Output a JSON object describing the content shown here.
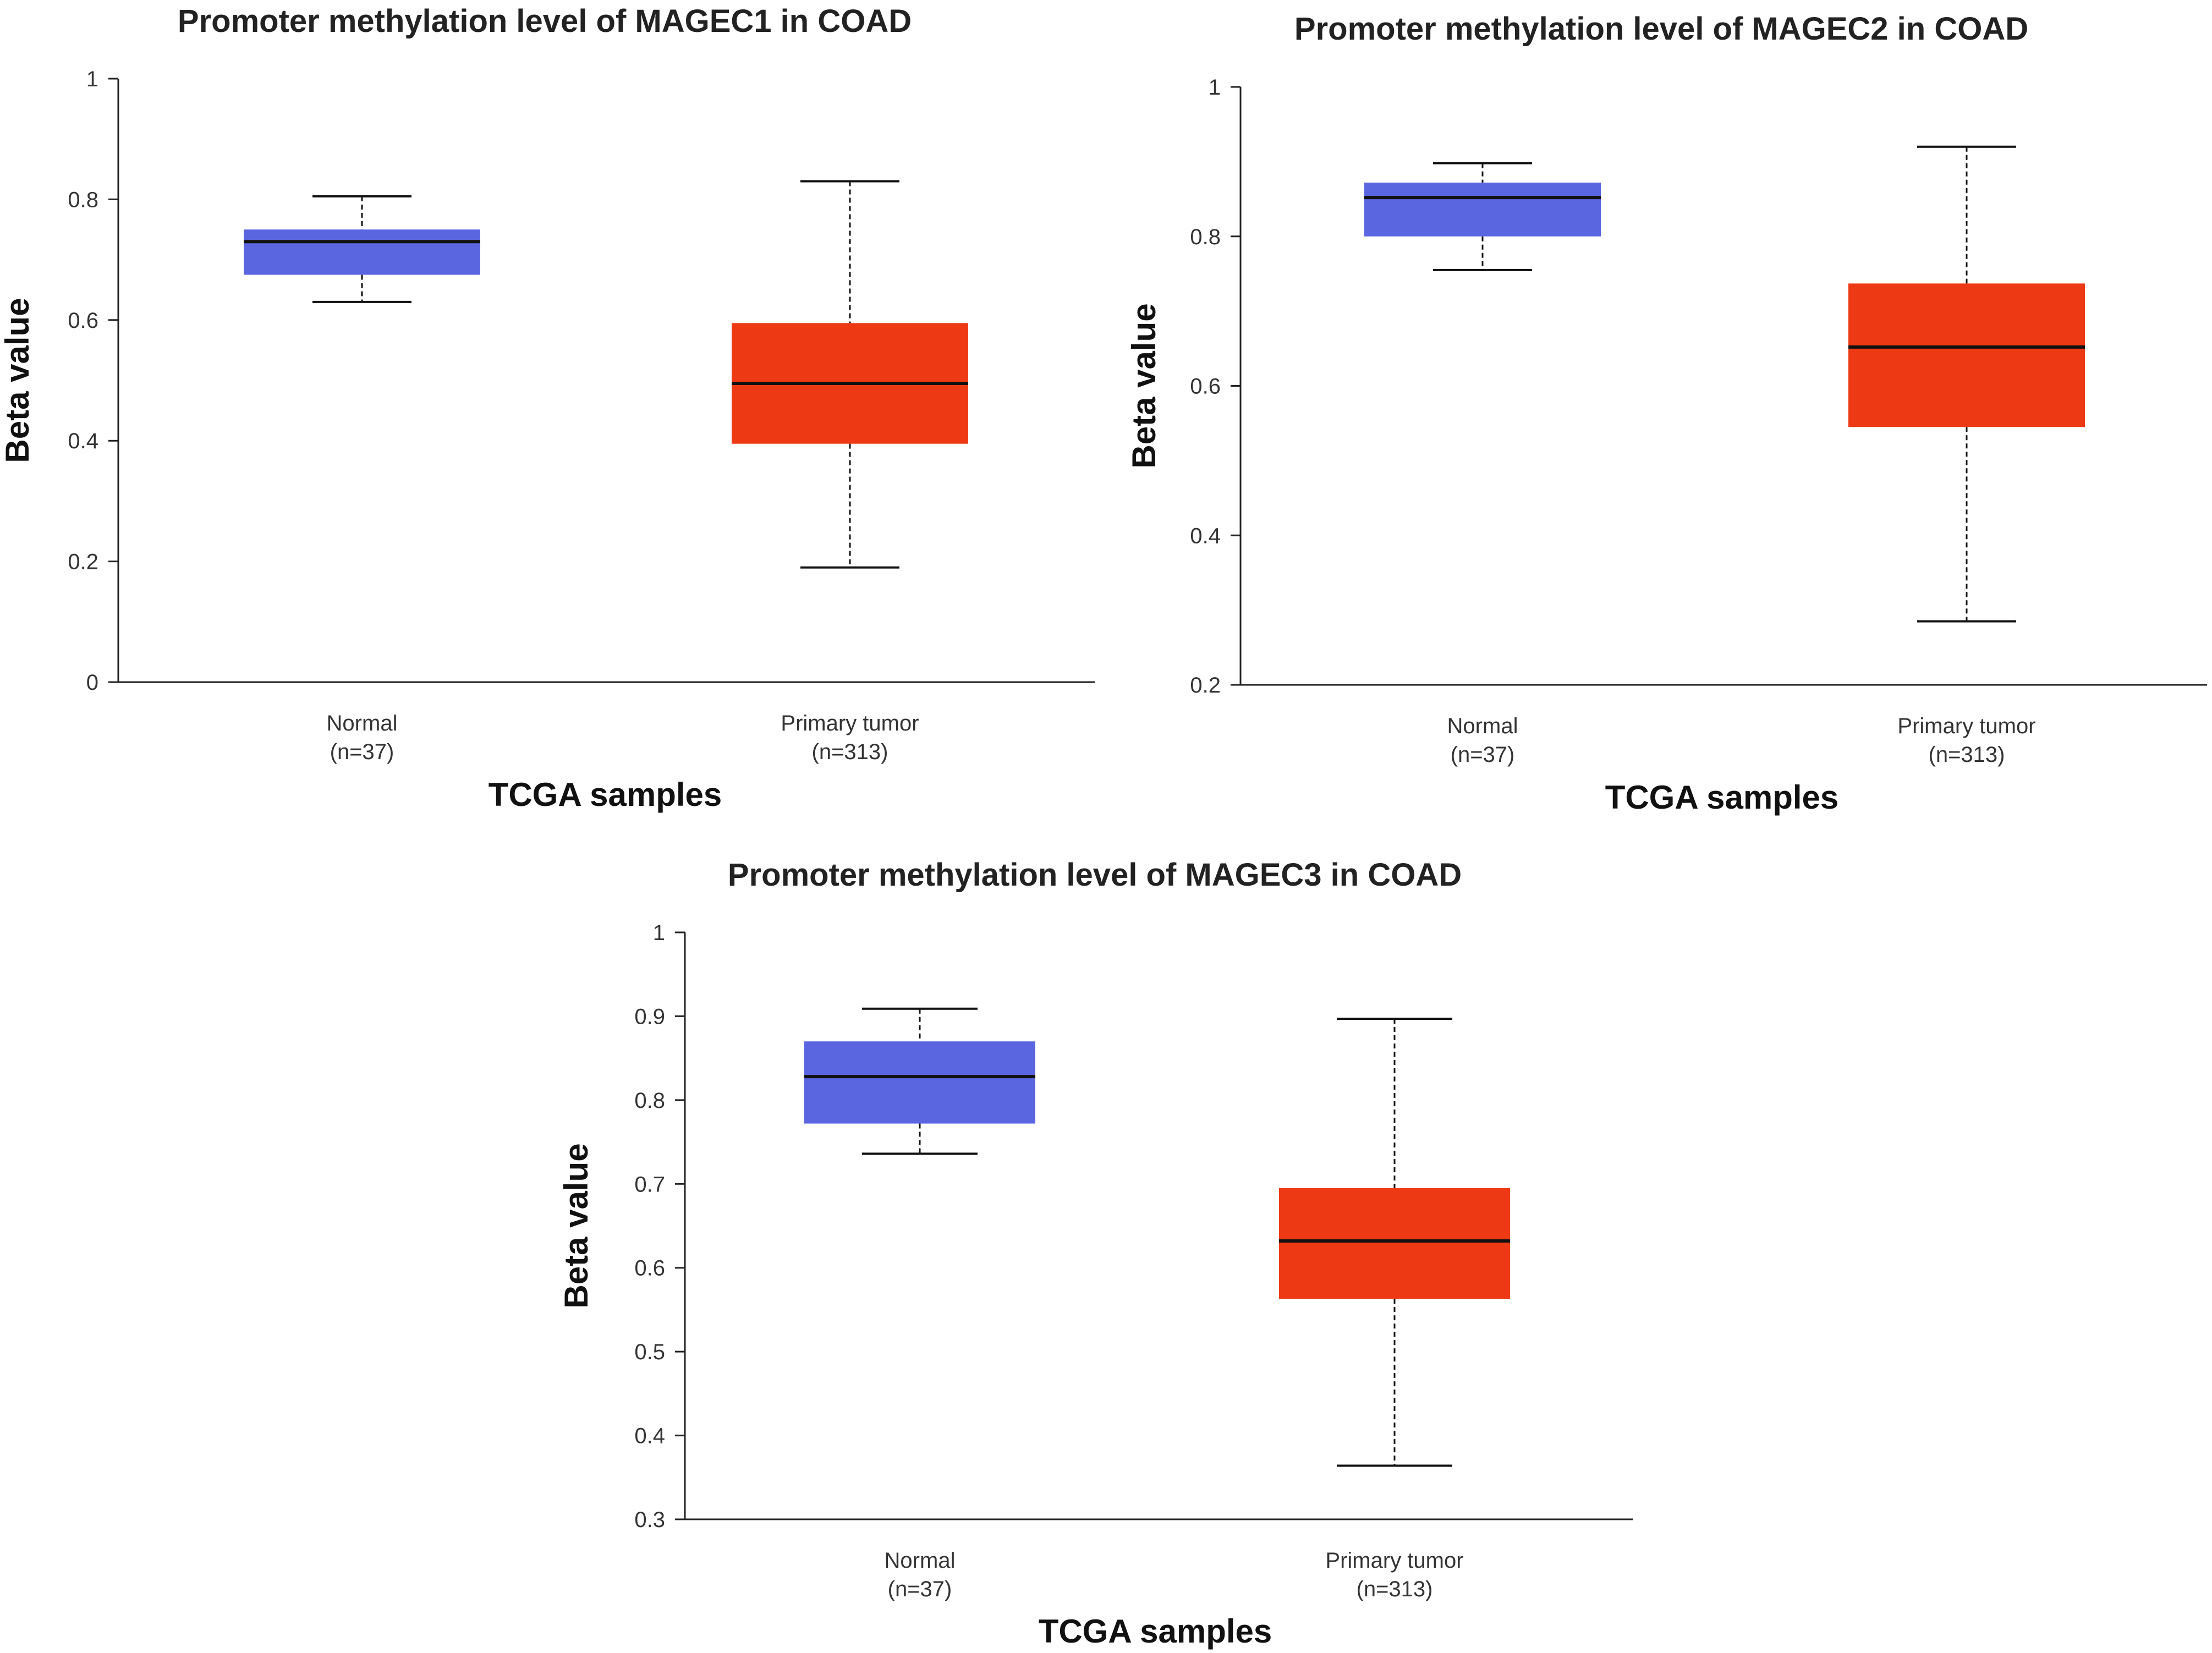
{
  "chart_data": [
    {
      "type": "box",
      "title": "Promoter methylation level of MAGEC1 in COAD",
      "xlabel": "TCGA samples",
      "ylabel": "Beta value",
      "ylim": [
        0,
        1
      ],
      "yticks": [
        "0",
        "0.2",
        "0.4",
        "0.6",
        "0.8",
        "1"
      ],
      "grid": false,
      "categories": [
        {
          "label": "Normal",
          "n": "(n=37)",
          "color": "#5a66e0",
          "min": 0.63,
          "q1": 0.675,
          "median": 0.73,
          "q3": 0.75,
          "max": 0.805
        },
        {
          "label": "Primary tumor",
          "n": "(n=313)",
          "color": "#ee3a14",
          "min": 0.19,
          "q1": 0.395,
          "median": 0.495,
          "q3": 0.595,
          "max": 0.83
        }
      ]
    },
    {
      "type": "box",
      "title": "Promoter methylation level of MAGEC2 in COAD",
      "xlabel": "TCGA samples",
      "ylabel": "Beta value",
      "ylim": [
        0.2,
        1
      ],
      "yticks": [
        "0.2",
        "0.4",
        "0.6",
        "0.8",
        "1"
      ],
      "grid": false,
      "categories": [
        {
          "label": "Normal",
          "n": "(n=37)",
          "color": "#5a66e0",
          "min": 0.755,
          "q1": 0.8,
          "median": 0.852,
          "q3": 0.872,
          "max": 0.898
        },
        {
          "label": "Primary tumor",
          "n": "(n=313)",
          "color": "#ee3a14",
          "min": 0.285,
          "q1": 0.545,
          "median": 0.652,
          "q3": 0.737,
          "max": 0.92
        }
      ]
    },
    {
      "type": "box",
      "title": "Promoter methylation level of MAGEC3 in COAD",
      "xlabel": "TCGA samples",
      "ylabel": "Beta value",
      "ylim": [
        0.3,
        1
      ],
      "yticks": [
        "0.3",
        "0.4",
        "0.5",
        "0.6",
        "0.7",
        "0.8",
        "0.9",
        "1"
      ],
      "grid": false,
      "categories": [
        {
          "label": "Normal",
          "n": "(n=37)",
          "color": "#5a66e0",
          "min": 0.736,
          "q1": 0.772,
          "median": 0.828,
          "q3": 0.87,
          "max": 0.909
        },
        {
          "label": "Primary tumor",
          "n": "(n=313)",
          "color": "#ee3a14",
          "min": 0.364,
          "q1": 0.563,
          "median": 0.632,
          "q3": 0.695,
          "max": 0.897
        }
      ]
    }
  ]
}
